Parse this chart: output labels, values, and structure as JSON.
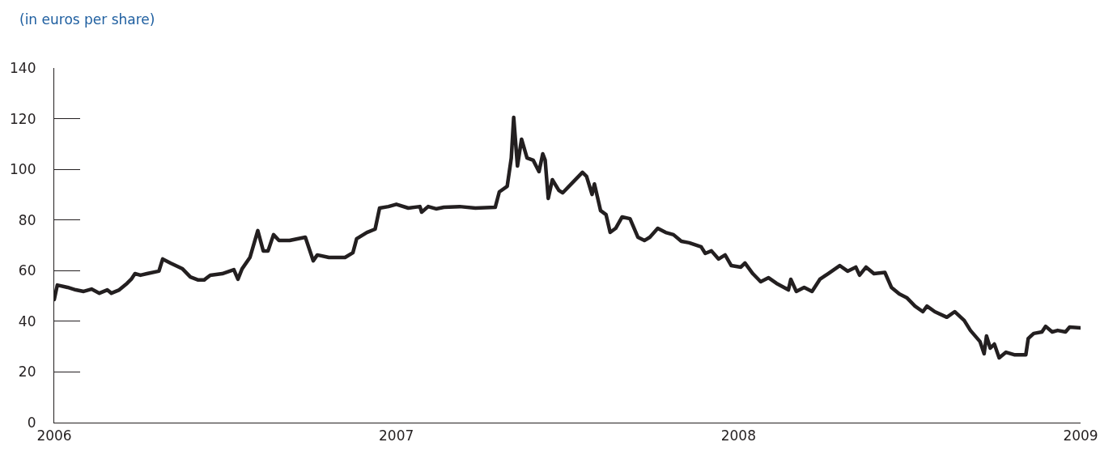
{
  "chart_data": {
    "type": "line",
    "ylabel": "(in euros per share)",
    "x": [
      2006.0,
      2006.009,
      2006.039,
      2006.063,
      2006.086,
      2006.109,
      2006.132,
      2006.155,
      2006.167,
      2006.19,
      2006.213,
      2006.225,
      2006.236,
      2006.252,
      2006.271,
      2006.306,
      2006.317,
      2006.34,
      2006.375,
      2006.398,
      2006.421,
      2006.438,
      2006.456,
      2006.491,
      2006.525,
      2006.537,
      2006.549,
      2006.572,
      2006.595,
      2006.611,
      2006.625,
      2006.641,
      2006.657,
      2006.688,
      2006.734,
      2006.757,
      2006.769,
      2006.803,
      2006.85,
      2006.873,
      2006.884,
      2006.914,
      2006.938,
      2006.951,
      2006.977,
      2007.0,
      2007.035,
      2007.069,
      2007.074,
      2007.093,
      2007.116,
      2007.139,
      2007.185,
      2007.231,
      2007.289,
      2007.301,
      2007.324,
      2007.336,
      2007.343,
      2007.354,
      2007.366,
      2007.382,
      2007.4,
      2007.417,
      2007.428,
      2007.435,
      2007.444,
      2007.456,
      2007.475,
      2007.486,
      2007.516,
      2007.544,
      2007.556,
      2007.572,
      2007.579,
      2007.597,
      2007.613,
      2007.625,
      2007.641,
      2007.66,
      2007.683,
      2007.706,
      2007.725,
      2007.741,
      2007.764,
      2007.787,
      2007.81,
      2007.833,
      2007.856,
      2007.891,
      2007.903,
      2007.921,
      2007.942,
      2007.961,
      2007.979,
      2008.007,
      2008.019,
      2008.042,
      2008.065,
      2008.088,
      2008.111,
      2008.146,
      2008.153,
      2008.169,
      2008.192,
      2008.215,
      2008.238,
      2008.262,
      2008.296,
      2008.319,
      2008.343,
      2008.354,
      2008.373,
      2008.396,
      2008.428,
      2008.447,
      2008.47,
      2008.493,
      2008.516,
      2008.539,
      2008.551,
      2008.574,
      2008.609,
      2008.632,
      2008.66,
      2008.678,
      2008.706,
      2008.718,
      2008.725,
      2008.736,
      2008.748,
      2008.762,
      2008.782,
      2008.806,
      2008.84,
      2008.847,
      2008.863,
      2008.887,
      2008.898,
      2008.917,
      2008.933,
      2008.956,
      2008.968,
      2009.0
    ],
    "series": [
      {
        "color": "#231f20",
        "values": [
          48.6,
          54.3,
          53.4,
          52.4,
          51.8,
          52.7,
          51.1,
          52.4,
          51.1,
          52.4,
          55.0,
          56.6,
          58.8,
          58.2,
          58.8,
          59.8,
          64.6,
          63.0,
          60.7,
          57.5,
          56.3,
          56.3,
          58.2,
          58.8,
          60.4,
          56.6,
          60.7,
          65.2,
          75.8,
          67.8,
          67.8,
          74.2,
          71.9,
          71.9,
          73.2,
          63.9,
          66.2,
          65.2,
          65.2,
          67.1,
          72.6,
          75.1,
          76.4,
          84.7,
          85.3,
          86.2,
          84.7,
          85.3,
          83.1,
          85.3,
          84.4,
          85.0,
          85.3,
          84.7,
          85.0,
          91.1,
          93.3,
          104.5,
          120.5,
          101.3,
          111.9,
          104.5,
          103.6,
          99.1,
          106.1,
          103.6,
          88.5,
          95.9,
          91.7,
          90.7,
          94.9,
          98.8,
          97.2,
          90.1,
          94.2,
          83.7,
          82.1,
          75.1,
          76.7,
          81.2,
          80.5,
          73.2,
          71.9,
          73.2,
          76.7,
          75.1,
          74.2,
          71.6,
          71.0,
          69.4,
          66.8,
          67.8,
          64.6,
          66.2,
          62.0,
          61.4,
          63.0,
          58.8,
          55.6,
          57.2,
          55.0,
          52.4,
          56.6,
          51.8,
          53.4,
          51.8,
          56.6,
          58.8,
          62.0,
          59.8,
          61.4,
          58.2,
          61.4,
          58.8,
          59.3,
          53.4,
          50.8,
          49.2,
          46.0,
          43.8,
          46.0,
          43.8,
          41.6,
          43.8,
          40.3,
          36.4,
          32.0,
          27.2,
          34.2,
          29.4,
          31.0,
          25.6,
          27.8,
          26.8,
          26.8,
          33.2,
          35.2,
          35.8,
          38.0,
          35.8,
          36.4,
          35.8,
          37.7,
          37.4
        ]
      }
    ],
    "xlim": [
      2006,
      2009
    ],
    "xticks": [
      2006,
      2007,
      2008,
      2009
    ],
    "ylim": [
      0,
      140
    ],
    "yticks": [
      0,
      20,
      40,
      60,
      80,
      100,
      120,
      140
    ],
    "marker": "none",
    "line_style": "solid"
  }
}
